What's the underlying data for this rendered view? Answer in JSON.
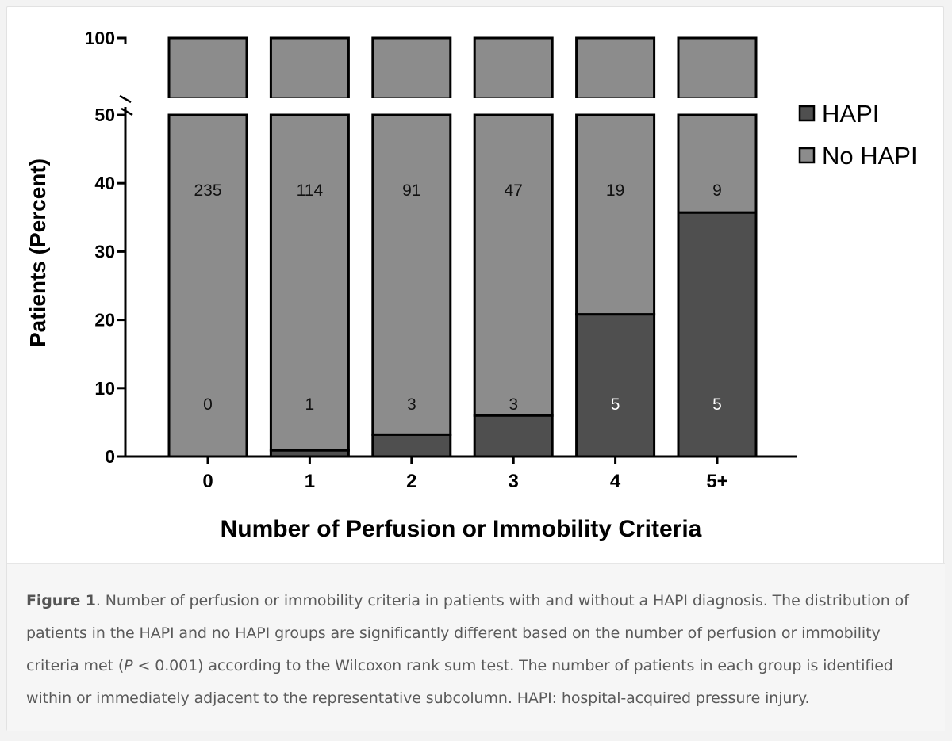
{
  "chart_data": {
    "type": "bar",
    "stacked": true,
    "xlabel": "Number of Perfusion or Immobility Criteria",
    "ylabel": "Patients  (Percent)",
    "categories": [
      "0",
      "1",
      "2",
      "3",
      "4",
      "5+"
    ],
    "y_ticks_lower": [
      0,
      10,
      20,
      30,
      40,
      50
    ],
    "y_ticks_upper": [
      100
    ],
    "axis_break": [
      50,
      100
    ],
    "ylim": [
      0,
      100
    ],
    "grid": false,
    "legend_position": "right",
    "series": [
      {
        "name": "HAPI",
        "color": "#4f4f4f",
        "percent": [
          0,
          0.9,
          3.2,
          6.0,
          20.8,
          35.7
        ],
        "counts": [
          "0",
          "1",
          "3",
          "3",
          "5",
          "5"
        ]
      },
      {
        "name": "No HAPI",
        "color": "#8c8c8c",
        "percent": [
          100,
          99.1,
          96.8,
          94.0,
          79.2,
          64.3
        ],
        "counts": [
          "235",
          "114",
          "91",
          "47",
          "19",
          "9"
        ]
      }
    ]
  },
  "caption": {
    "label": "Figure 1",
    "text_before_p": ". Number of perfusion or immobility criteria in patients with and without a HAPI diagnosis. The distribution of patients in the HAPI and no HAPI groups are significantly different based on the number of perfusion or immobility criteria met (",
    "p_symbol": "P",
    "text_after_p": " < 0.001) according to the Wilcoxon rank sum test. The number of patients in each group is identified within or immediately adjacent to the representative subcolumn. HAPI: hospital-acquired pressure injury."
  }
}
